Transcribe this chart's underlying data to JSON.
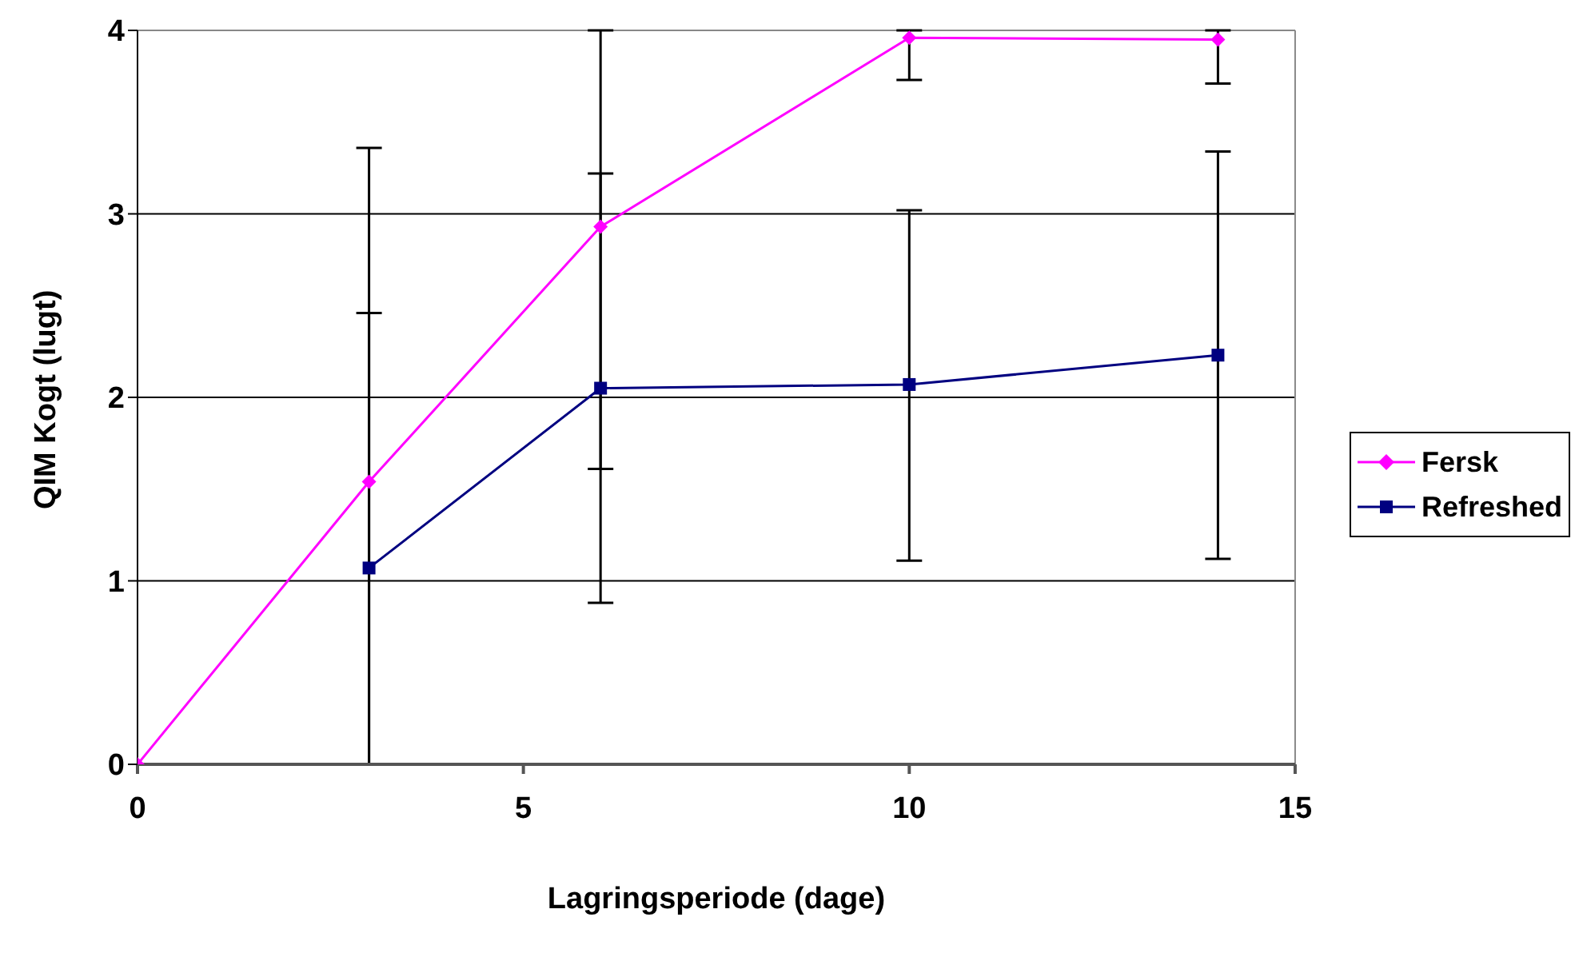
{
  "chart_data": {
    "type": "line",
    "xlabel": "Lagringsperiode (dage)",
    "ylabel": "QIM Kogt (lugt)",
    "xlim": [
      0,
      15
    ],
    "xticks": [
      0,
      5,
      10,
      15
    ],
    "ylim": [
      0,
      4
    ],
    "yticks": [
      0,
      1,
      2,
      3,
      4
    ],
    "grid": "y",
    "legend": "right",
    "line_style": "solid",
    "series": [
      {
        "name": "Fersk",
        "color": "#ff00ff",
        "marker": "diamond",
        "x": [
          0,
          3,
          6,
          10,
          14
        ],
        "values": [
          0,
          1.54,
          2.93,
          3.96,
          3.95
        ],
        "errors": [
          null,
          [
            0,
            3.36
          ],
          [
            1.61,
            4
          ],
          [
            3.73,
            4
          ],
          [
            3.71,
            4
          ]
        ]
      },
      {
        "name": "Refreshed",
        "color": "#000080",
        "marker": "square",
        "x": [
          3,
          6,
          10,
          14
        ],
        "values": [
          1.07,
          2.05,
          2.07,
          2.23
        ],
        "errors": [
          [
            0,
            2.46
          ],
          [
            0.88,
            3.22
          ],
          [
            1.11,
            3.02
          ],
          [
            1.12,
            3.34
          ]
        ]
      }
    ]
  }
}
